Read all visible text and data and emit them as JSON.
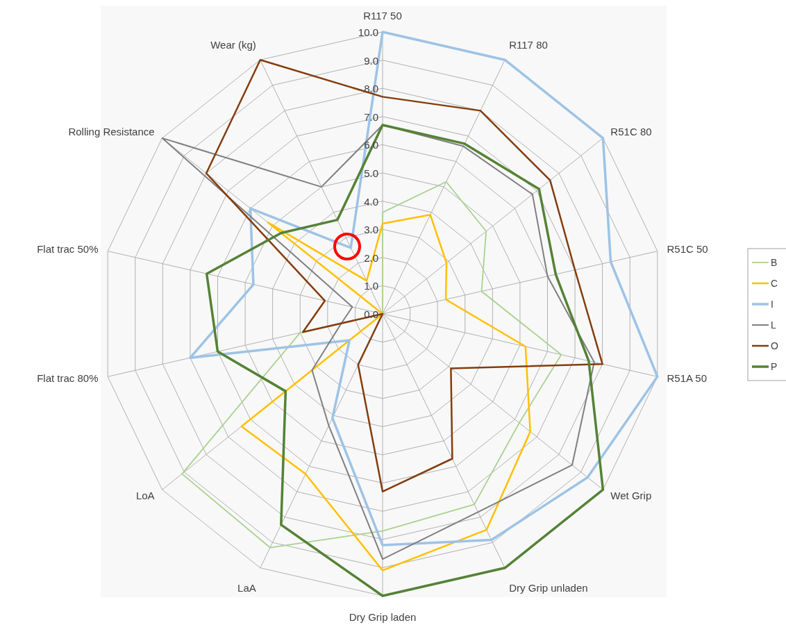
{
  "chart_data": {
    "type": "radar",
    "categories": [
      "R117 50",
      "R117 80",
      "R51C 80",
      "R51C 50",
      "R51A 50",
      "Wet Grip",
      "Dry Grip unladen",
      "Dry Grip laden",
      "LaA",
      "LoA",
      "Flat trac 80%",
      "Flat trac 50%",
      "Rolling Resistance",
      "Wear (kg)"
    ],
    "ylim": [
      0,
      10
    ],
    "yticks": [
      {
        "value": 0,
        "label": "0.0"
      },
      {
        "value": 1,
        "label": "1.0"
      },
      {
        "value": 2,
        "label": "2.0"
      },
      {
        "value": 3,
        "label": "3.0"
      },
      {
        "value": 4,
        "label": "4.0"
      },
      {
        "value": 5,
        "label": "5.0"
      },
      {
        "value": 6,
        "label": "6.0"
      },
      {
        "value": 7,
        "label": "7.0"
      },
      {
        "value": 8,
        "label": "8.0"
      },
      {
        "value": 9,
        "label": "9.0"
      },
      {
        "value": 10,
        "label": "10.0"
      }
    ],
    "grid": true,
    "legend": "right",
    "marker": "none",
    "series": [
      {
        "name": "B",
        "color": "#a9d18e",
        "values": [
          3.6,
          5.2,
          4.7,
          3.6,
          6.5,
          6.2,
          7.5,
          7.7,
          9.2,
          9.1,
          3.0,
          0,
          0,
          0
        ]
      },
      {
        "name": "C",
        "color": "#ffc000",
        "values": [
          3.2,
          3.9,
          2.9,
          2.3,
          5.2,
          6.7,
          8.5,
          9.1,
          6.3,
          6.4,
          0,
          0,
          5.2,
          1.3
        ]
      },
      {
        "name": "I",
        "color": "#9dc3e6",
        "values": [
          10,
          10,
          10,
          8.3,
          10,
          9.3,
          8.9,
          8.2,
          4.1,
          1.5,
          7.0,
          4.7,
          6.0,
          2.6
        ]
      },
      {
        "name": "L",
        "color": "#7f7f7f",
        "values": [
          6.7,
          6.6,
          6.8,
          6.0,
          7.7,
          8.6,
          7.8,
          8.7,
          4.4,
          3.2,
          1.5,
          1.1,
          10,
          5.0
        ]
      },
      {
        "name": "O",
        "color": "#843c0c",
        "values": [
          7.7,
          8.0,
          7.6,
          7.0,
          8.0,
          3.1,
          5.7,
          6.3,
          2.0,
          0,
          2.9,
          2.1,
          8.0,
          10
        ]
      },
      {
        "name": "P",
        "color": "#548235",
        "values": [
          6.7,
          6.7,
          7.1,
          6.3,
          7.5,
          10,
          10,
          10,
          8.3,
          4.4,
          6.0,
          6.4,
          4.6,
          3.7
        ]
      }
    ]
  }
}
